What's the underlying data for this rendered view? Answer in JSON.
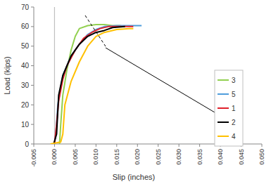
{
  "chart_data": {
    "type": "line",
    "x_label": "Slip (inches)",
    "y_label": "Load (kips)",
    "xlim": [
      -0.005,
      0.05
    ],
    "ylim": [
      0,
      70
    ],
    "xticks": [
      {
        "value": -0.005,
        "label": "-0.005"
      },
      {
        "value": 0,
        "label": "0.000"
      },
      {
        "value": 0.005,
        "label": "0.005"
      },
      {
        "value": 0.01,
        "label": "0.010"
      },
      {
        "value": 0.015,
        "label": "0.015"
      },
      {
        "value": 0.02,
        "label": "0.020"
      },
      {
        "value": 0.025,
        "label": "0.025"
      },
      {
        "value": 0.03,
        "label": "0.030"
      },
      {
        "value": 0.035,
        "label": "0.035"
      },
      {
        "value": 0.04,
        "label": "0.040"
      },
      {
        "value": 0.045,
        "label": "0.045"
      },
      {
        "value": 0.05,
        "label": "0.050"
      }
    ],
    "yticks": [
      0,
      10,
      20,
      30,
      40,
      50,
      60,
      70
    ],
    "grid": false,
    "legend": "right",
    "series": [
      {
        "name": "3",
        "color": "#92d050",
        "x": [
          0.0012,
          0.0015,
          0.002,
          0.003,
          0.004,
          0.005,
          0.006,
          0.008,
          0.01,
          0.012,
          0.014,
          0.016
        ],
        "values": [
          0,
          10,
          25,
          38,
          48,
          55,
          59,
          60.5,
          61,
          61,
          60.5,
          60.5
        ]
      },
      {
        "name": "5",
        "color": "#4f9ddc",
        "x": [
          0,
          0.0003,
          0.0008,
          0.002,
          0.004,
          0.006,
          0.008,
          0.01,
          0.012,
          0.015,
          0.018,
          0.021
        ],
        "values": [
          0,
          5,
          20,
          35,
          45,
          51,
          56,
          58.5,
          60,
          60.5,
          60.5,
          60.5
        ]
      },
      {
        "name": "1",
        "color": "#e0202a",
        "x": [
          0,
          0.0005,
          0.001,
          0.002,
          0.003,
          0.005,
          0.007,
          0.009,
          0.011,
          0.013,
          0.016,
          0.019
        ],
        "values": [
          0,
          10,
          22,
          33,
          40,
          48,
          54,
          57,
          59,
          60,
          60,
          60
        ]
      },
      {
        "name": "2",
        "color": "#000000",
        "x": [
          -0.0002,
          0.0005,
          0.001,
          0.002,
          0.004,
          0.006,
          0.008,
          0.01,
          0.012,
          0.014,
          0.017
        ],
        "values": [
          0,
          5,
          25,
          35,
          45,
          51,
          55,
          57,
          58,
          59.5,
          60
        ]
      },
      {
        "name": "4",
        "color": "#ffc000",
        "x": [
          -0.001,
          0.0015,
          0.002,
          0.0025,
          0.004,
          0.006,
          0.008,
          0.01,
          0.012,
          0.015,
          0.018,
          0.019
        ],
        "values": [
          0,
          1,
          5,
          20,
          32,
          42,
          50,
          55,
          57,
          58.5,
          59,
          59
        ]
      }
    ]
  }
}
